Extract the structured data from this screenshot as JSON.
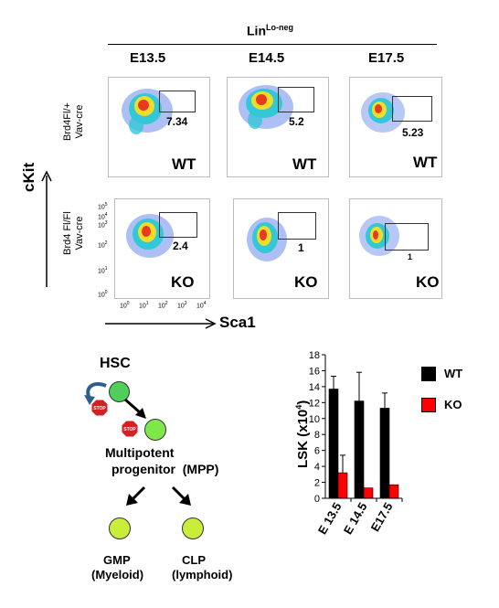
{
  "header": {
    "lineage": "Lin",
    "lineage_sup": "Lo-neg",
    "stages": [
      "E13.5",
      "E14.5",
      "E17.5"
    ]
  },
  "rows": [
    {
      "label_line1": "Brd4Fl/+",
      "label_line2": "Vav-cre",
      "genotype": "WT",
      "percentages": [
        "7.34",
        "5.2",
        "5.23"
      ]
    },
    {
      "label_line1": "Brd4 Fl/Fl",
      "label_line2": "Vav-cre",
      "genotype": "KO",
      "percentages": [
        "2.4",
        "1",
        "1"
      ]
    }
  ],
  "axes": {
    "y_label": "cKit",
    "x_label": "Sca1",
    "ko_y_ticks": [
      {
        "base": "10",
        "exp": "5"
      },
      {
        "base": "10",
        "exp": "4"
      },
      {
        "base": "10",
        "exp": "3"
      },
      {
        "base": "10",
        "exp": "2"
      },
      {
        "base": "10",
        "exp": "1"
      },
      {
        "base": "10",
        "exp": "0"
      }
    ],
    "ko_x_ticks": [
      {
        "base": "10",
        "exp": "0"
      },
      {
        "base": "10",
        "exp": "1"
      },
      {
        "base": "10",
        "exp": "2"
      },
      {
        "base": "10",
        "exp": "3"
      },
      {
        "base": "10",
        "exp": "4"
      }
    ]
  },
  "diagram": {
    "hsc": "HSC",
    "stop": "STOP",
    "mpp_line1": "Multipotent",
    "mpp_line2": "progenitor  (MPP)",
    "gmp_line1": "GMP",
    "gmp_line2": "(Myeloid)",
    "clp_line1": "CLP",
    "clp_line2": "(lymphoid)"
  },
  "colors": {
    "hsc": "#4fcf5a",
    "mpp": "#7ee84a",
    "progenitor": "#c8ee3a",
    "arrow_blue": "#2f5d8e",
    "stop_red": "#d42020",
    "wt": "#000000",
    "ko": "#ff0000"
  },
  "chart_data": {
    "type": "bar",
    "ylabel": "LSK (x10",
    "ylabel_sup": "4",
    "ylabel_close": ")",
    "categories": [
      "E 13.5",
      "E 14.5",
      "E17.5"
    ],
    "ylim": [
      0,
      18
    ],
    "yticks": [
      "0",
      "2",
      "4",
      "6",
      "8",
      "10",
      "12",
      "14",
      "16",
      "18"
    ],
    "series": [
      {
        "name": "WT",
        "values": [
          13.7,
          12.2,
          11.3
        ],
        "errors": [
          1.6,
          3.6,
          1.9
        ],
        "color": "#000000"
      },
      {
        "name": "KO",
        "values": [
          3.2,
          1.3,
          1.7
        ],
        "errors": [
          2.2,
          0,
          0
        ],
        "color": "#ff0000"
      }
    ],
    "legend_position": "right"
  }
}
